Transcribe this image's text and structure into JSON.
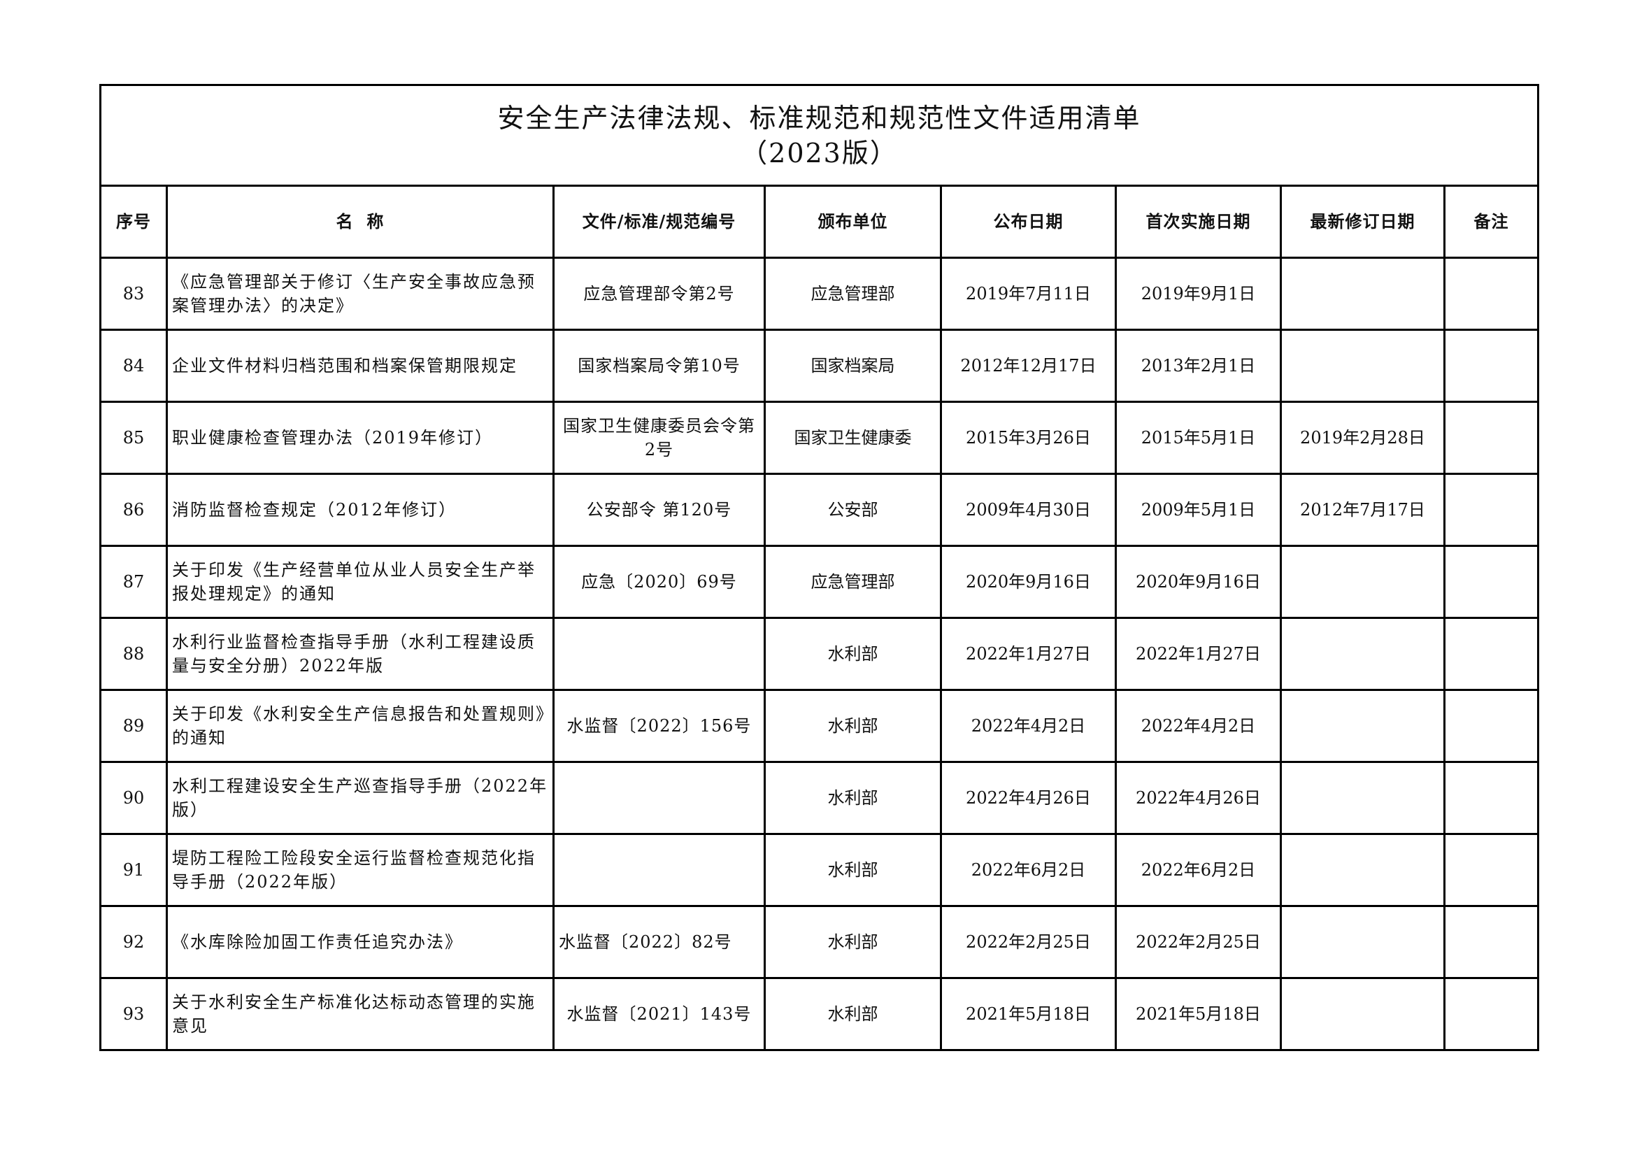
{
  "title": {
    "line1": "安全生产法律法规、标准规范和规范性文件适用清单",
    "line2": "（2023版）"
  },
  "columns": [
    "序号",
    "名  称",
    "文件/标准/规范编号",
    "颁布单位",
    "公布日期",
    "首次实施日期",
    "最新修订日期",
    "备注"
  ],
  "rows": [
    {
      "no": "83",
      "name": "《应急管理部关于修订〈生产安全事故应急预案管理办法〉的决定》",
      "doc": "应急管理部令第2号",
      "issuer": "应急管理部",
      "published": "2019年7月11日",
      "effective": "2019年9月1日",
      "revised": "",
      "note": ""
    },
    {
      "no": "84",
      "name": "企业文件材料归档范围和档案保管期限规定",
      "doc": "国家档案局令第10号",
      "issuer": "国家档案局",
      "published": "2012年12月17日",
      "effective": "2013年2月1日",
      "revised": "",
      "note": ""
    },
    {
      "no": "85",
      "name": "职业健康检查管理办法（2019年修订）",
      "doc": "国家卫生健康委员会令第2号",
      "issuer": "国家卫生健康委",
      "published": "2015年3月26日",
      "effective": "2015年5月1日",
      "revised": "2019年2月28日",
      "note": ""
    },
    {
      "no": "86",
      "name": "消防监督检查规定（2012年修订）",
      "doc": "公安部令  第120号",
      "issuer": "公安部",
      "published": "2009年4月30日",
      "effective": "2009年5月1日",
      "revised": "2012年7月17日",
      "note": ""
    },
    {
      "no": "87",
      "name": "关于印发《生产经营单位从业人员安全生产举报处理规定》的通知",
      "doc": "应急〔2020〕69号",
      "issuer": "应急管理部",
      "published": "2020年9月16日",
      "effective": "2020年9月16日",
      "revised": "",
      "note": ""
    },
    {
      "no": "88",
      "name": "水利行业监督检查指导手册（水利工程建设质量与安全分册）2022年版",
      "doc": "",
      "issuer": "水利部",
      "published": "2022年1月27日",
      "effective": "2022年1月27日",
      "revised": "",
      "note": ""
    },
    {
      "no": "89",
      "name": "关于印发《水利安全生产信息报告和处置规则》的通知",
      "doc": "水监督〔2022〕156号",
      "issuer": "水利部",
      "published": "2022年4月2日",
      "effective": "2022年4月2日",
      "revised": "",
      "note": ""
    },
    {
      "no": "90",
      "name": "水利工程建设安全生产巡查指导手册（2022年版）",
      "doc": "",
      "issuer": "水利部",
      "published": "2022年4月26日",
      "effective": "2022年4月26日",
      "revised": "",
      "note": ""
    },
    {
      "no": "91",
      "name": "堤防工程险工险段安全运行监督检查规范化指导手册（2022年版）",
      "doc": "",
      "issuer": "水利部",
      "published": "2022年6月2日",
      "effective": "2022年6月2日",
      "revised": "",
      "note": ""
    },
    {
      "no": "92",
      "name": "《水库除险加固工作责任追究办法》",
      "doc": "水监督〔2022〕82号",
      "issuer": "水利部",
      "published": "2022年2月25日",
      "effective": "2022年2月25日",
      "revised": "",
      "note": ""
    },
    {
      "no": "93",
      "name": "关于水利安全生产标准化达标动态管理的实施意见",
      "doc": "水监督〔2021〕143号",
      "issuer": "水利部",
      "published": "2021年5月18日",
      "effective": "2021年5月18日",
      "revised": "",
      "note": ""
    }
  ]
}
